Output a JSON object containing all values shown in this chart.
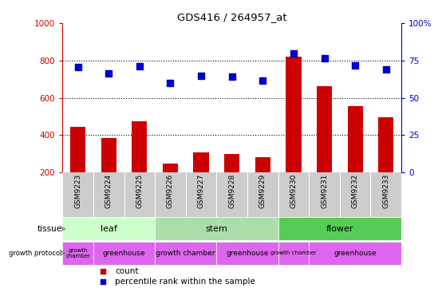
{
  "title": "GDS416 / 264957_at",
  "samples": [
    "GSM9223",
    "GSM9224",
    "GSM9225",
    "GSM9226",
    "GSM9227",
    "GSM9228",
    "GSM9229",
    "GSM9230",
    "GSM9231",
    "GSM9232",
    "GSM9233"
  ],
  "counts": [
    445,
    385,
    475,
    248,
    308,
    300,
    283,
    820,
    665,
    555,
    495
  ],
  "percentiles": [
    70.5,
    66.5,
    71.5,
    60,
    65,
    64.5,
    61.5,
    80,
    76.5,
    72,
    69
  ],
  "ylim_left": [
    200,
    1000
  ],
  "ylim_right": [
    0,
    100
  ],
  "yticks_left": [
    200,
    400,
    600,
    800,
    1000
  ],
  "yticks_right": [
    0,
    25,
    50,
    75,
    100
  ],
  "bar_color": "#cc0000",
  "scatter_color": "#0000cc",
  "tissue_groups": [
    {
      "label": "leaf",
      "start": 0,
      "end": 3,
      "color": "#ccffcc"
    },
    {
      "label": "stem",
      "start": 3,
      "end": 7,
      "color": "#aaeebb"
    },
    {
      "label": "flower",
      "start": 7,
      "end": 11,
      "color": "#55cc55"
    }
  ],
  "growth_protocol_groups": [
    {
      "label": "growth\nchamber",
      "start": 0,
      "end": 1
    },
    {
      "label": "greenhouse",
      "start": 1,
      "end": 3
    },
    {
      "label": "growth chamber",
      "start": 3,
      "end": 5
    },
    {
      "label": "greenhouse",
      "start": 5,
      "end": 7
    },
    {
      "label": "growth chamber",
      "start": 7,
      "end": 8
    },
    {
      "label": "greenhouse",
      "start": 8,
      "end": 11
    }
  ],
  "gp_color": "#dd66ee",
  "tick_color_left": "#cc0000",
  "tick_color_right": "#0000cc",
  "header_bg": "#cccccc",
  "bar_width": 0.5
}
